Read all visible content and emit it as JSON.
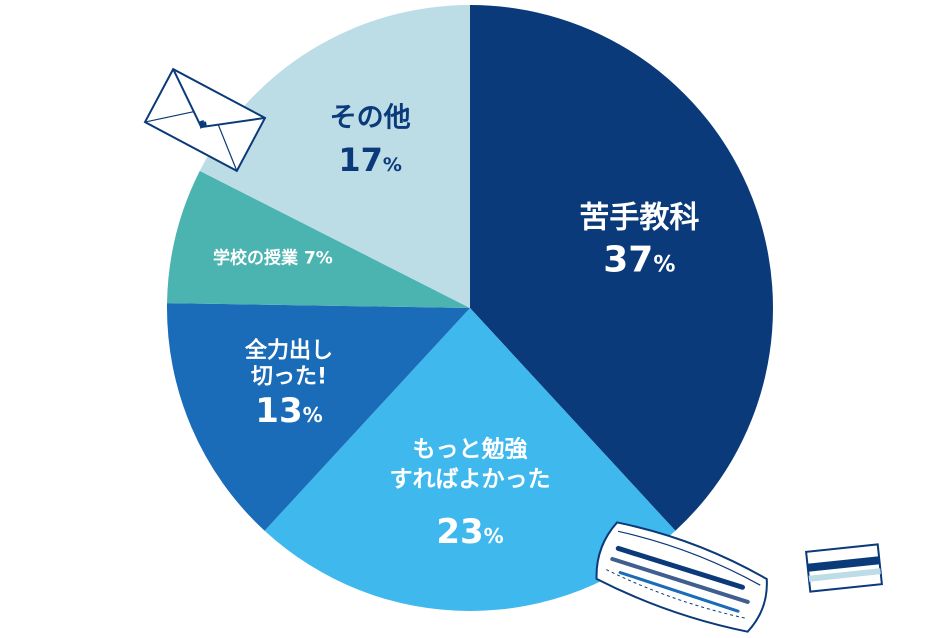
{
  "chart_data": {
    "type": "pie",
    "title": "",
    "legend": "none",
    "slices": [
      {
        "name": "苦手教科",
        "label_lines": [
          "苦手教科"
        ],
        "value": 37,
        "pct": "37",
        "unit": "%",
        "color": "#0b3a7a",
        "text_color": "#ffffff"
      },
      {
        "name": "もっと勉強すればよかった",
        "label_lines": [
          "もっと勉強",
          "すればよかった"
        ],
        "value": 23,
        "pct": "23",
        "unit": "%",
        "color": "#3fb8ee",
        "text_color": "#ffffff"
      },
      {
        "name": "全力出し切った!",
        "label_lines": [
          "全力出し",
          "切った!"
        ],
        "value": 13,
        "pct": "13",
        "unit": "%",
        "color": "#1a6bb8",
        "text_color": "#ffffff"
      },
      {
        "name": "学校の授業",
        "label_lines": [
          "学校の授業 7%"
        ],
        "value": 7,
        "pct": "",
        "unit": "",
        "color": "#4bb3b0",
        "text_color": "#ffffff"
      },
      {
        "name": "その他",
        "label_lines": [
          "その他"
        ],
        "value": 17,
        "pct": "17",
        "unit": "%",
        "color": "#bcdde6",
        "text_color": "#0b3a7a"
      }
    ]
  },
  "decor": {
    "envelope_icon": "envelope-icon",
    "pencil_case_icon": "pencil-case-icon",
    "eraser_icon": "eraser-icon"
  }
}
